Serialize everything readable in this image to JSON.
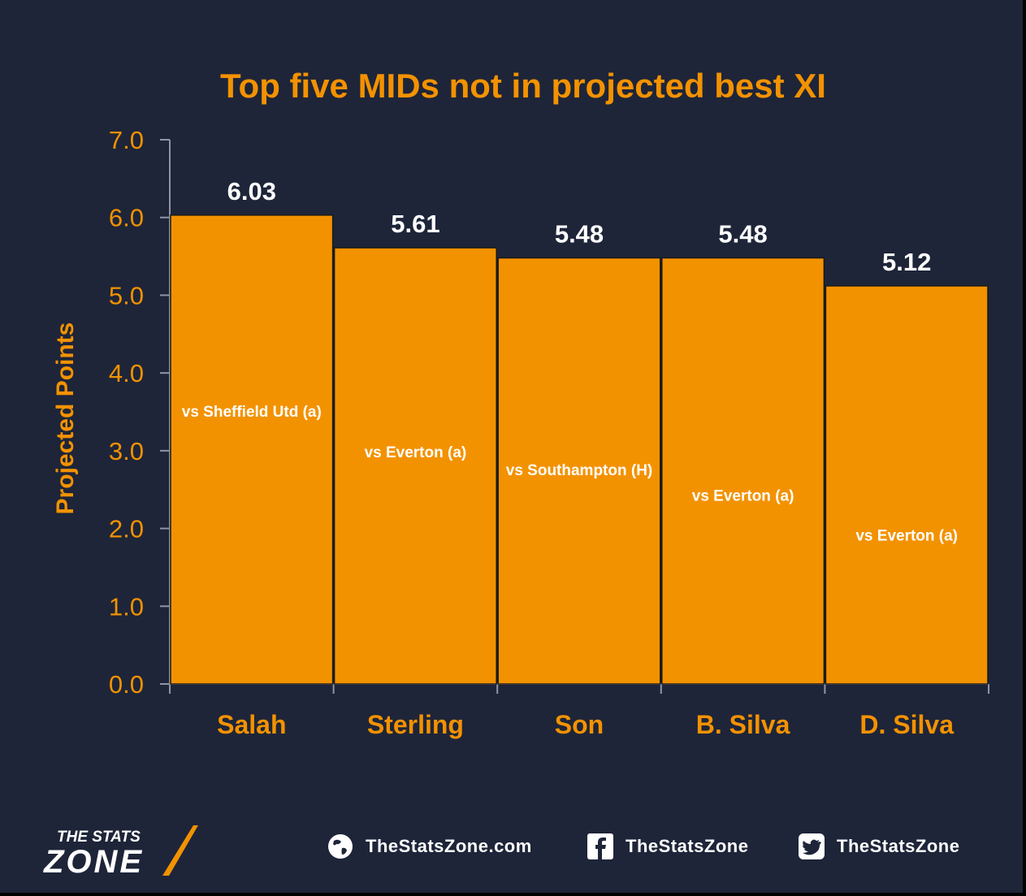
{
  "chart_data": {
    "type": "bar",
    "title": "Top five MIDs not in projected best XI",
    "ylabel": "Projected Points",
    "xlabel": "",
    "ylim": [
      0,
      7
    ],
    "yticks": [
      "0.0",
      "1.0",
      "2.0",
      "3.0",
      "4.0",
      "5.0",
      "6.0",
      "7.0"
    ],
    "categories": [
      "Salah",
      "Sterling",
      "Son",
      "B. Silva",
      "D. Silva"
    ],
    "values": [
      6.03,
      5.61,
      5.48,
      5.48,
      5.12
    ],
    "value_labels": [
      "6.03",
      "5.61",
      "5.48",
      "5.48",
      "5.12"
    ],
    "fixtures": [
      "vs Sheffield Utd (a)",
      "vs Everton (a)",
      "vs Southampton (H)",
      "vs Everton (a)",
      "vs Everton (a)"
    ],
    "grid": false,
    "colors": {
      "bar": "#f39200",
      "bar_outline": "#1a1a1a",
      "background": "#1e2539",
      "accent_text": "#f39200"
    }
  },
  "footer": {
    "logo_line1": "THE STATS",
    "logo_line2": "ZONE",
    "website": "TheStatsZone.com",
    "facebook": "TheStatsZone",
    "twitter": "TheStatsZone",
    "icons": [
      "globe-icon",
      "facebook-icon",
      "twitter-icon"
    ]
  }
}
